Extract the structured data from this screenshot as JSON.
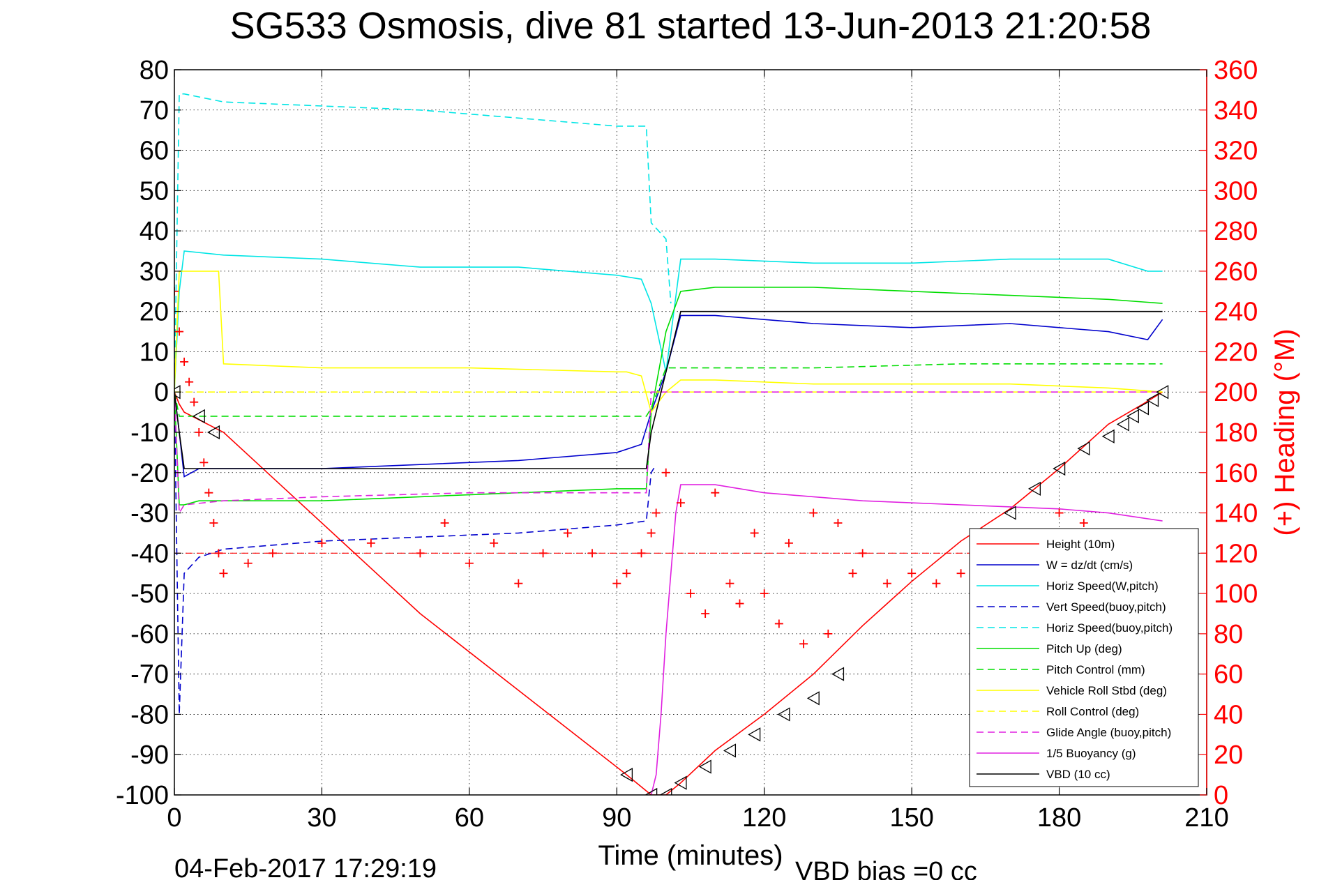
{
  "chart_data": {
    "type": "line",
    "title": "SG533 Osmosis, dive 81 started 13-Jun-2013 21:20:58",
    "xlabel": "Time (minutes)",
    "ylabel": "",
    "ylabel_right": "(+) Heading (°M)",
    "xlim": [
      0,
      210
    ],
    "ylim": [
      -100,
      80
    ],
    "ylim_right": [
      0,
      360
    ],
    "x_ticks": [
      "0",
      "30",
      "60",
      "90",
      "120",
      "150",
      "180",
      "210"
    ],
    "y_ticks": [
      "80",
      "70",
      "60",
      "50",
      "40",
      "30",
      "20",
      "10",
      "0",
      "-10",
      "-20",
      "-30",
      "-40",
      "-50",
      "-60",
      "-70",
      "-80",
      "-90",
      "-100"
    ],
    "y_ticks_right": [
      "360",
      "340",
      "320",
      "300",
      "280",
      "260",
      "240",
      "220",
      "200",
      "180",
      "160",
      "140",
      "120",
      "100",
      "80",
      "60",
      "40",
      "20",
      "0"
    ],
    "grid": true,
    "legend_position": "bottom-right",
    "footer_date": "04-Feb-2017 17:29:19",
    "footer_note": "VBD bias =0 cc",
    "series": [
      {
        "name": "Height (10m)",
        "color": "#ff0000",
        "style": "solid",
        "x": [
          0,
          1,
          2,
          10,
          50,
          92,
          97,
          100,
          103,
          110,
          120,
          130,
          140,
          150,
          160,
          170,
          180,
          190,
          197,
          201
        ],
        "y": [
          0,
          -3,
          -5,
          -10,
          -55,
          -95,
          -100,
          -100,
          -97,
          -89,
          -80,
          -70,
          -58,
          -47,
          -37,
          -29,
          -19,
          -8,
          -3,
          0
        ]
      },
      {
        "name": "W = dz/dt (cm/s)",
        "color": "#0000cc",
        "style": "solid",
        "x": [
          0,
          1,
          2,
          5,
          10,
          20,
          30,
          50,
          70,
          90,
          95,
          97,
          100,
          103,
          110,
          130,
          150,
          170,
          180,
          190,
          198,
          201
        ],
        "y": [
          0,
          -10,
          -21,
          -19,
          -19,
          -19,
          -19,
          -18,
          -17,
          -15,
          -13,
          -5,
          5,
          19,
          19,
          17,
          16,
          17,
          16,
          15,
          13,
          18
        ]
      },
      {
        "name": "Horiz Speed(W,pitch)",
        "color": "#00e5e5",
        "style": "solid",
        "x": [
          0,
          1,
          2,
          10,
          30,
          50,
          70,
          90,
          95,
          97,
          100,
          103,
          110,
          130,
          150,
          170,
          190,
          198,
          201
        ],
        "y": [
          0,
          25,
          35,
          34,
          33,
          31,
          31,
          29,
          28,
          22,
          5,
          33,
          33,
          32,
          32,
          33,
          33,
          30,
          30
        ]
      },
      {
        "name": "Vert Speed(buoy,pitch)",
        "color": "#0000cc",
        "style": "dashed",
        "x": [
          0,
          1,
          2,
          5,
          10,
          30,
          50,
          70,
          90,
          96,
          97,
          98
        ],
        "y": [
          0,
          -80,
          -45,
          -41,
          -39,
          -37,
          -36,
          -35,
          -33,
          -32,
          -20,
          -18
        ]
      },
      {
        "name": "Horiz Speed(buoy,pitch)",
        "color": "#00e5e5",
        "style": "dashed",
        "x": [
          0,
          1,
          2,
          10,
          30,
          50,
          70,
          90,
          96,
          97,
          100,
          101
        ],
        "y": [
          0,
          74,
          74,
          72,
          71,
          70,
          68,
          66,
          66,
          42,
          38,
          22
        ]
      },
      {
        "name": "Pitch Up (deg)",
        "color": "#00dd00",
        "style": "solid",
        "x": [
          0,
          1,
          2,
          5,
          10,
          30,
          50,
          70,
          90,
          96,
          97,
          100,
          103,
          110,
          130,
          150,
          170,
          190,
          201
        ],
        "y": [
          0,
          -28,
          -28,
          -27,
          -27,
          -27,
          -26,
          -25,
          -24,
          -24,
          -5,
          15,
          25,
          26,
          26,
          25,
          24,
          23,
          22
        ]
      },
      {
        "name": "Pitch Control (mm)",
        "color": "#00dd00",
        "style": "dashed",
        "x": [
          0,
          1,
          2,
          96,
          97,
          100,
          130,
          160,
          201
        ],
        "y": [
          0,
          -6,
          -6,
          -6,
          -4,
          6,
          6,
          7,
          7
        ]
      },
      {
        "name": "Vehicle Roll Stbd (deg)",
        "color": "#ffff00",
        "style": "solid",
        "x": [
          0,
          1,
          2,
          9,
          10,
          30,
          60,
          90,
          92,
          95,
          97,
          100,
          103,
          106,
          110,
          130,
          150,
          170,
          190,
          201
        ],
        "y": [
          0,
          30,
          30,
          30,
          7,
          6,
          6,
          5,
          5,
          4,
          -5,
          0,
          3,
          3,
          3,
          2,
          2,
          2,
          1,
          0
        ]
      },
      {
        "name": "Roll Control (deg)",
        "color": "#ffff00",
        "style": "dashed",
        "x": [
          0,
          2,
          10,
          30,
          60,
          90,
          97,
          100,
          201
        ],
        "y": [
          0,
          0,
          0,
          0,
          0,
          0,
          0,
          0,
          0
        ]
      },
      {
        "name": "Glide Angle (buoy,pitch)",
        "color": "#e020e0",
        "style": "dashed",
        "x": [
          0,
          1,
          2,
          10,
          30,
          60,
          90,
          96,
          97,
          100,
          201
        ],
        "y": [
          0,
          -30,
          -28,
          -27,
          -26,
          -25,
          -25,
          -25,
          0,
          0,
          0
        ]
      },
      {
        "name": "1/5 Buoyancy (g)",
        "color": "#e020e0",
        "style": "solid",
        "x": [
          97,
          98,
          99,
          100,
          101,
          102,
          103,
          110,
          120,
          140,
          160,
          180,
          190,
          201
        ],
        "y": [
          -100,
          -95,
          -80,
          -60,
          -45,
          -30,
          -23,
          -23,
          -25,
          -27,
          -28,
          -29,
          -30,
          -32
        ]
      },
      {
        "name": "VBD (10 cc)",
        "color": "#000000",
        "style": "solid",
        "x": [
          0,
          1,
          2,
          10,
          30,
          60,
          90,
          96,
          97,
          100,
          102,
          103,
          130,
          160,
          201
        ],
        "y": [
          0,
          -10,
          -19,
          -19,
          -19,
          -19,
          -19,
          -19,
          -10,
          5,
          15,
          20,
          20,
          20,
          20
        ]
      }
    ],
    "heading_series": {
      "name": "Heading",
      "axis": "right",
      "color": "#ff0000",
      "marker": "+",
      "x": [
        0,
        1,
        2,
        3,
        4,
        5,
        6,
        7,
        8,
        9,
        10,
        15,
        20,
        30,
        40,
        50,
        55,
        60,
        65,
        70,
        75,
        80,
        85,
        90,
        92,
        95,
        97,
        98,
        100,
        103,
        105,
        108,
        110,
        113,
        115,
        118,
        120,
        123,
        125,
        128,
        130,
        133,
        135,
        138,
        140,
        145,
        150,
        155,
        160,
        163,
        165,
        168,
        170,
        175,
        180,
        185,
        190,
        195,
        198,
        200
      ],
      "y": [
        250,
        230,
        215,
        205,
        195,
        180,
        165,
        150,
        135,
        120,
        110,
        115,
        120,
        125,
        125,
        120,
        135,
        115,
        125,
        105,
        120,
        130,
        120,
        105,
        110,
        120,
        130,
        140,
        160,
        145,
        100,
        90,
        150,
        105,
        95,
        130,
        100,
        85,
        125,
        75,
        140,
        80,
        135,
        110,
        120,
        105,
        110,
        105,
        110,
        115,
        120,
        125,
        125,
        130,
        140,
        135,
        125,
        120,
        120,
        115
      ]
    },
    "heading_reference": {
      "value": 120,
      "style": "dashed",
      "color": "#ff0000"
    },
    "vbd_markers": {
      "x": [
        0,
        5,
        8,
        92,
        97,
        100,
        103,
        108,
        113,
        118,
        124,
        130,
        135,
        165,
        170,
        175,
        180,
        185,
        190,
        193,
        195,
        197,
        199,
        201
      ],
      "y": [
        0,
        -6,
        -10,
        -95,
        -100,
        -100,
        -97,
        -93,
        -89,
        -85,
        -80,
        -76,
        -70,
        -65,
        -30,
        -24,
        -19,
        -14,
        -11,
        -8,
        -6,
        -4,
        -2,
        0
      ]
    }
  }
}
